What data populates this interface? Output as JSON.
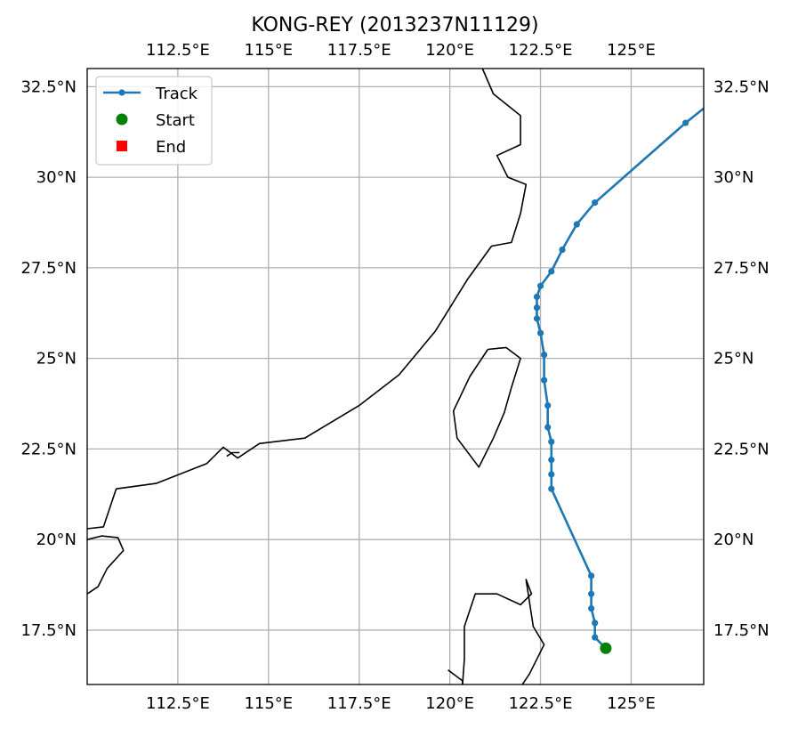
{
  "chart_data": {
    "type": "map-track",
    "title": "KONG-REY (2013237N11129)",
    "xlim": [
      110.0,
      127.0
    ],
    "ylim": [
      16.0,
      33.0
    ],
    "grid": true,
    "x_ticks": [
      {
        "value": 112.5,
        "label": "112.5°E"
      },
      {
        "value": 115.0,
        "label": "115°E"
      },
      {
        "value": 117.5,
        "label": "117.5°E"
      },
      {
        "value": 120.0,
        "label": "120°E"
      },
      {
        "value": 122.5,
        "label": "122.5°E"
      },
      {
        "value": 125.0,
        "label": "125°E"
      }
    ],
    "y_ticks": [
      {
        "value": 17.5,
        "label": "17.5°N"
      },
      {
        "value": 20.0,
        "label": "20°N"
      },
      {
        "value": 22.5,
        "label": "22.5°N"
      },
      {
        "value": 25.0,
        "label": "25°N"
      },
      {
        "value": 27.5,
        "label": "27.5°N"
      },
      {
        "value": 30.0,
        "label": "30°N"
      },
      {
        "value": 32.5,
        "label": "32.5°N"
      }
    ],
    "legend": {
      "placement": "top-left",
      "entries": [
        {
          "label": "Track",
          "marker": "line-dot",
          "color": "#1f77b4"
        },
        {
          "label": "Start",
          "marker": "circle",
          "color": "#008000"
        },
        {
          "label": "End",
          "marker": "square",
          "color": "#ff0000"
        }
      ]
    },
    "track": {
      "name": "Track",
      "color": "#1f77b4",
      "points": [
        {
          "lon": 124.3,
          "lat": 17.0
        },
        {
          "lon": 124.0,
          "lat": 17.3
        },
        {
          "lon": 124.0,
          "lat": 17.7
        },
        {
          "lon": 123.9,
          "lat": 18.1
        },
        {
          "lon": 123.9,
          "lat": 18.5
        },
        {
          "lon": 123.9,
          "lat": 19.0
        },
        {
          "lon": 122.8,
          "lat": 21.4
        },
        {
          "lon": 122.8,
          "lat": 21.8
        },
        {
          "lon": 122.8,
          "lat": 22.2
        },
        {
          "lon": 122.8,
          "lat": 22.7
        },
        {
          "lon": 122.7,
          "lat": 23.1
        },
        {
          "lon": 122.7,
          "lat": 23.7
        },
        {
          "lon": 122.6,
          "lat": 24.4
        },
        {
          "lon": 122.6,
          "lat": 25.1
        },
        {
          "lon": 122.5,
          "lat": 25.7
        },
        {
          "lon": 122.4,
          "lat": 26.1
        },
        {
          "lon": 122.4,
          "lat": 26.4
        },
        {
          "lon": 122.4,
          "lat": 26.7
        },
        {
          "lon": 122.5,
          "lat": 27.0
        },
        {
          "lon": 122.8,
          "lat": 27.4
        },
        {
          "lon": 123.1,
          "lat": 28.0
        },
        {
          "lon": 123.5,
          "lat": 28.7
        },
        {
          "lon": 124.0,
          "lat": 29.3
        },
        {
          "lon": 126.5,
          "lat": 31.5
        },
        {
          "lon": 127.0,
          "lat": 31.9
        }
      ]
    },
    "start": {
      "lon": 124.3,
      "lat": 17.0,
      "color": "#008000"
    },
    "coastlines": [
      [
        [
          110.0,
          20.3
        ],
        [
          110.45,
          20.35
        ],
        [
          110.8,
          21.4
        ],
        [
          111.9,
          21.55
        ],
        [
          113.3,
          22.1
        ],
        [
          113.75,
          22.55
        ],
        [
          114.15,
          22.25
        ],
        [
          114.75,
          22.65
        ],
        [
          116.0,
          22.8
        ],
        [
          117.5,
          23.7
        ],
        [
          118.6,
          24.55
        ],
        [
          119.6,
          25.75
        ],
        [
          120.5,
          27.2
        ],
        [
          121.15,
          28.1
        ],
        [
          121.7,
          28.2
        ],
        [
          121.95,
          29.0
        ],
        [
          122.1,
          29.8
        ],
        [
          121.6,
          30.0
        ],
        [
          121.3,
          30.6
        ],
        [
          121.95,
          30.9
        ],
        [
          121.95,
          31.7
        ],
        [
          121.2,
          32.3
        ],
        [
          120.9,
          33.0
        ]
      ],
      [
        [
          121.05,
          25.25
        ],
        [
          121.55,
          25.3
        ],
        [
          121.95,
          25.0
        ],
        [
          121.7,
          24.2
        ],
        [
          121.5,
          23.5
        ],
        [
          121.2,
          22.8
        ],
        [
          120.8,
          22.0
        ],
        [
          120.2,
          22.8
        ],
        [
          120.1,
          23.55
        ],
        [
          120.55,
          24.5
        ],
        [
          121.05,
          25.25
        ]
      ],
      [
        [
          110.0,
          20.0
        ],
        [
          110.4,
          20.1
        ],
        [
          110.85,
          20.05
        ],
        [
          111.0,
          19.7
        ],
        [
          110.55,
          19.2
        ],
        [
          110.3,
          18.7
        ],
        [
          110.0,
          18.5
        ]
      ],
      [
        [
          119.95,
          16.4
        ],
        [
          120.35,
          16.1
        ],
        [
          120.35,
          16.0
        ]
      ],
      [
        [
          120.35,
          16.0
        ],
        [
          120.4,
          16.7
        ],
        [
          120.4,
          17.6
        ],
        [
          120.7,
          18.5
        ],
        [
          121.3,
          18.5
        ],
        [
          121.95,
          18.2
        ],
        [
          122.25,
          18.5
        ],
        [
          122.1,
          18.9
        ],
        [
          122.3,
          17.6
        ],
        [
          122.6,
          17.1
        ],
        [
          122.2,
          16.3
        ],
        [
          122.0,
          16.0
        ]
      ],
      [
        [
          113.85,
          22.3
        ],
        [
          114.0,
          22.4
        ],
        [
          114.2,
          22.4
        ]
      ]
    ]
  }
}
